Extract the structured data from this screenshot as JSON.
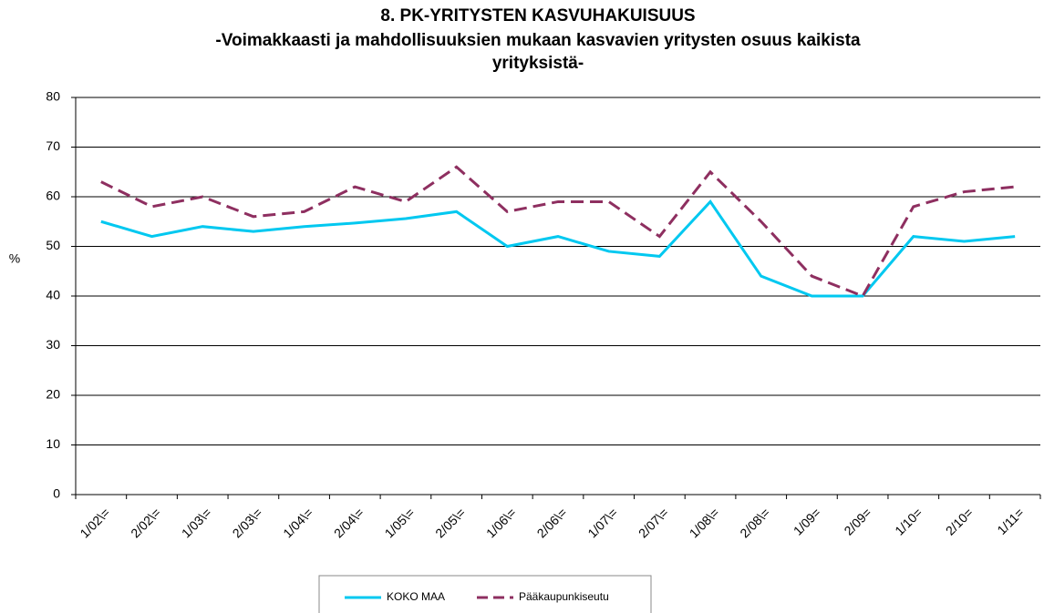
{
  "chart_data": {
    "type": "line",
    "title": "8. PK-YRITYSTEN KASVUHAKUISUUS",
    "subtitle": [
      "-Voimakkaasti ja mahdollisuuksien mukaan kasvavien yritysten osuus kaikista",
      "yrityksistä-"
    ],
    "y_label": "%",
    "categories": [
      "1/02\\=",
      "2/02\\=",
      "1/03\\=",
      "2/03\\=",
      "1/04\\=",
      "2/04\\=",
      "1/05\\=",
      "2/05\\=",
      "1/06\\=",
      "2/06\\=",
      "1/07\\=",
      "2/07\\=",
      "1/08\\=",
      "2/08\\=",
      "1/09=",
      "2/09=",
      "1/10=",
      "2/10=",
      "1/11="
    ],
    "series": [
      {
        "name": "KOKO MAA",
        "color": "#00c8f0",
        "dashed": false,
        "values": [
          55,
          52,
          54,
          53,
          54,
          54.7,
          55.6,
          57,
          50,
          52,
          49,
          48,
          59,
          44,
          40,
          40,
          52,
          51,
          52
        ]
      },
      {
        "name": "Pääkaupunkiseutu",
        "color": "#8e2f60",
        "dashed": true,
        "values": [
          63,
          58,
          60,
          56,
          57,
          62,
          59,
          66,
          57,
          59,
          59,
          52,
          65,
          55,
          44,
          40,
          58,
          61,
          62
        ]
      }
    ],
    "ylim": [
      0,
      80
    ],
    "yticks": [
      0,
      10,
      20,
      30,
      40,
      50,
      60,
      70,
      80
    ],
    "grid": true
  }
}
